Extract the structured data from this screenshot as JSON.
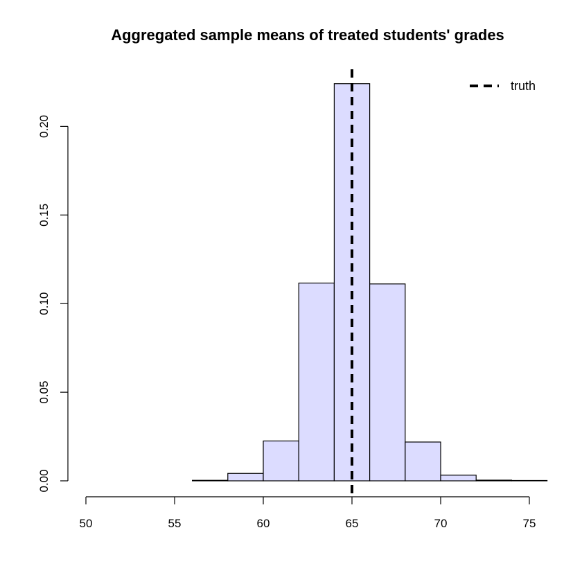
{
  "chart_data": {
    "type": "bar",
    "title": "Aggregated sample means of treated students' grades",
    "xlabel": "",
    "ylabel": "",
    "bin_edges": [
      56,
      58,
      60,
      62,
      64,
      66,
      68,
      70,
      72,
      74,
      76
    ],
    "values": [
      0.0003,
      0.0042,
      0.0225,
      0.1116,
      0.2241,
      0.1111,
      0.0219,
      0.0032,
      0.0004,
      0.0002
    ],
    "xlim": [
      50,
      76
    ],
    "ylim": [
      0,
      0.23
    ],
    "x_ticks": [
      50,
      55,
      60,
      65,
      70,
      75
    ],
    "x_tick_labels": [
      "50",
      "55",
      "60",
      "65",
      "70",
      "75"
    ],
    "y_ticks": [
      0,
      0.05,
      0.1,
      0.15,
      0.2
    ],
    "y_tick_labels": [
      "0.00",
      "0.05",
      "0.10",
      "0.15",
      "0.20"
    ],
    "bar_color": "#dcdcff",
    "reference_line": {
      "x": 65,
      "label": "truth",
      "color": "#000000",
      "style": "dashed"
    },
    "legend": {
      "position": "top-right",
      "entries": [
        "truth"
      ]
    },
    "grid": false
  }
}
